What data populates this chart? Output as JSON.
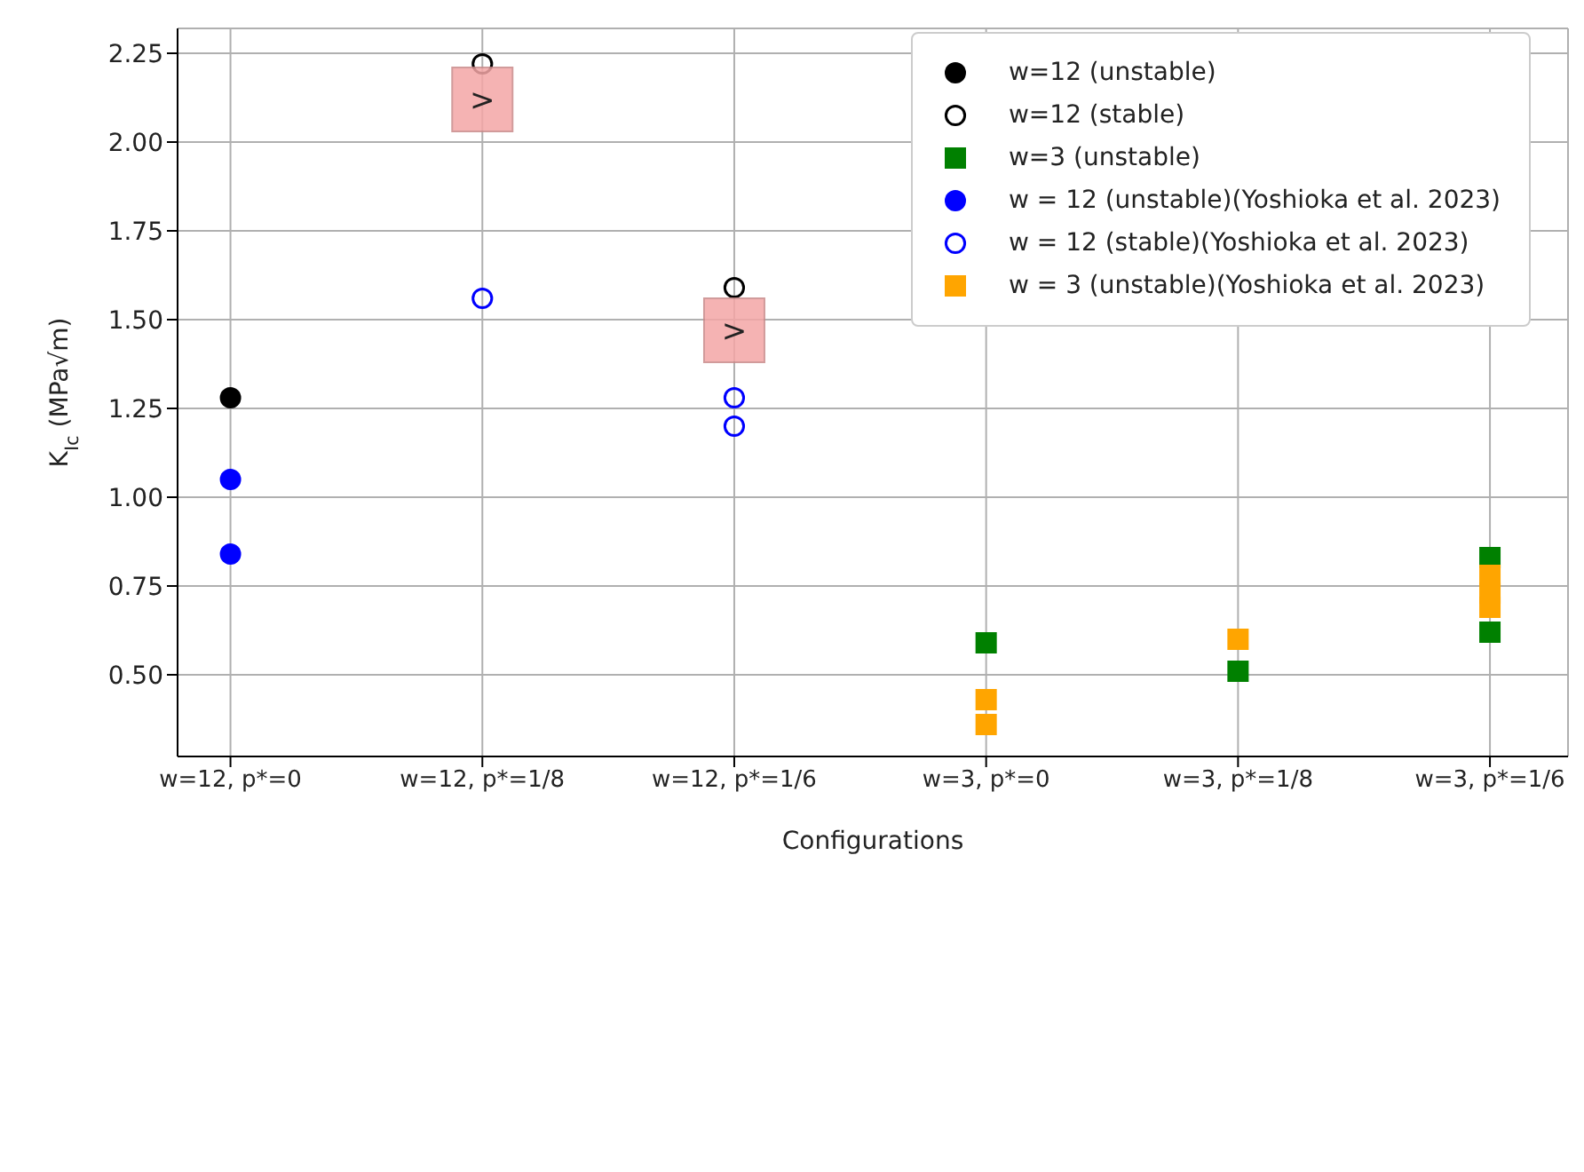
{
  "chart_data": {
    "type": "scatter",
    "xlabel": "Configurations",
    "ylabel": "K$_{Ic}$ (MPa√m)",
    "categories": [
      "w=12, p*=0",
      "w=12, p*=1/8",
      "w=12, p*=1/6",
      "w=3, p*=0",
      "w=3, p*=1/8",
      "w=3, p*=1/6"
    ],
    "ylim": [
      0.27,
      2.32
    ],
    "yticks": [
      {
        "value": 0.5,
        "label": "0.50"
      },
      0.75,
      {
        "value": 1.0,
        "label": "1.00"
      },
      1.25,
      {
        "value": 1.5,
        "label": "1.50"
      },
      1.75,
      {
        "value": 2.0,
        "label": "2.00"
      },
      2.25
    ],
    "grid": true,
    "legend": "top right",
    "series": [
      {
        "name": "w=12 (unstable)",
        "color": "#000000",
        "marker": "circle",
        "x": [
          "w=12, p*=0"
        ],
        "values": [
          1.28
        ]
      },
      {
        "name": "w=12 (stable)",
        "color": "#000000",
        "marker": "circle-open",
        "x": [
          "w=12, p*=1/8",
          "w=12, p*=1/6"
        ],
        "values": [
          2.22,
          1.59
        ]
      },
      {
        "name": "w=3 (unstable)",
        "color": "#008000",
        "marker": "square",
        "x": [
          "w=3, p*=0",
          "w=3, p*=1/8",
          "w=3, p*=1/6",
          "w=3, p*=1/6"
        ],
        "values": [
          0.59,
          0.51,
          0.83,
          0.62
        ]
      },
      {
        "name": "w = 12 (unstable)(Yoshioka et al. 2023)",
        "color": "#0000ff",
        "marker": "circle",
        "x": [
          "w=12, p*=0",
          "w=12, p*=0"
        ],
        "values": [
          1.05,
          0.84
        ]
      },
      {
        "name": "w = 12 (stable)(Yoshioka et al. 2023)",
        "color": "#0000ff",
        "marker": "circle-open",
        "x": [
          "w=12, p*=1/8",
          "w=12, p*=1/6",
          "w=12, p*=1/6"
        ],
        "values": [
          1.56,
          1.28,
          1.2
        ]
      },
      {
        "name": "w = 3 (unstable)(Yoshioka et al. 2023)",
        "color": "#ffa500",
        "marker": "square",
        "x": [
          "w=3, p*=0",
          "w=3, p*=0",
          "w=3, p*=1/8",
          "w=3, p*=1/6",
          "w=3, p*=1/6",
          "w=3, p*=1/6"
        ],
        "values": [
          0.43,
          0.36,
          0.6,
          0.78,
          0.73,
          0.69
        ]
      }
    ],
    "annotations": [
      {
        "text": ">",
        "x": "w=12, p*=1/8",
        "y": 2.12
      },
      {
        "text": ">",
        "x": "w=12, p*=1/6",
        "y": 1.47
      }
    ]
  }
}
